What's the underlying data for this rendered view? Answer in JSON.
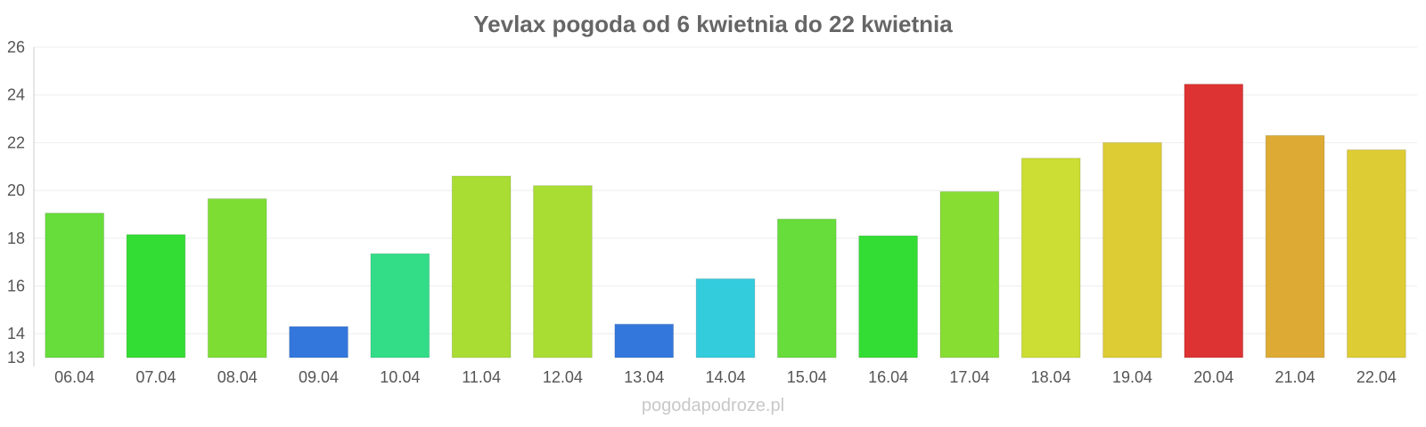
{
  "chart_data": {
    "type": "bar",
    "title": "Yevlax pogoda od 6 kwietnia do 22 kwietnia",
    "xlabel": "",
    "ylabel": "",
    "ylim": [
      13,
      26
    ],
    "yticks": [
      13,
      14,
      16,
      18,
      20,
      22,
      24,
      26
    ],
    "grid": true,
    "categories": [
      "06.04",
      "07.04",
      "08.04",
      "09.04",
      "10.04",
      "11.04",
      "12.04",
      "13.04",
      "14.04",
      "15.04",
      "16.04",
      "17.04",
      "18.04",
      "19.04",
      "20.04",
      "21.04",
      "22.04"
    ],
    "values": [
      19.05,
      18.15,
      19.65,
      14.3,
      17.35,
      20.6,
      20.2,
      14.4,
      16.3,
      18.8,
      18.1,
      19.95,
      21.35,
      22.0,
      24.45,
      22.3,
      21.7
    ],
    "colors": [
      "#66dd3a",
      "#33dd33",
      "#7edd33",
      "#3377dd",
      "#33dd88",
      "#aadd33",
      "#aadd33",
      "#3377dd",
      "#33ccdd",
      "#66dd3a",
      "#33dd33",
      "#88dd33",
      "#ccdd33",
      "#ddcc33",
      "#dd3333",
      "#ddaa33",
      "#ddcc33"
    ]
  },
  "footer": "pogodapodroze.pl"
}
